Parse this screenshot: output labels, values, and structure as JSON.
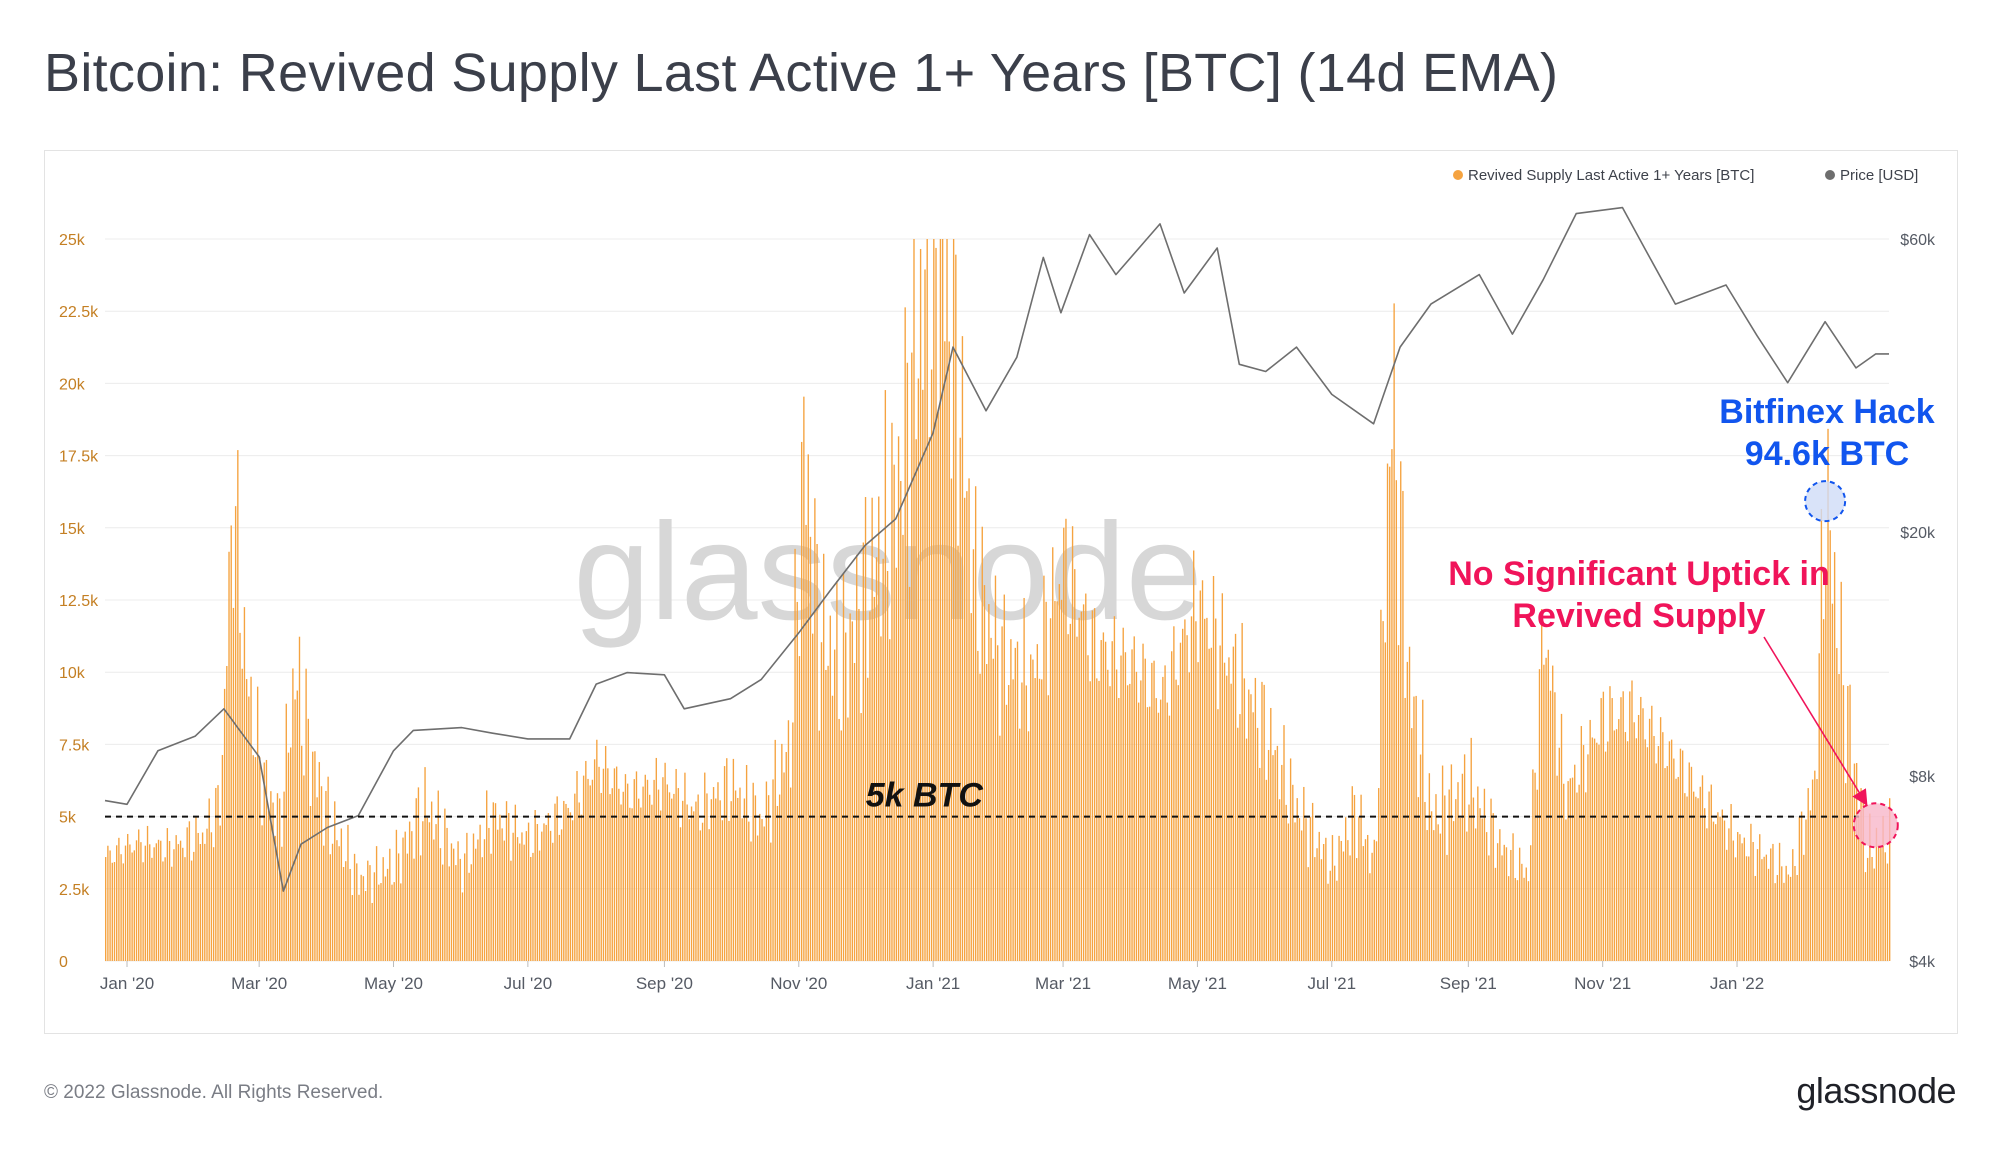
{
  "title": "Bitcoin: Revived Supply Last Active 1+ Years [BTC] (14d EMA)",
  "footer": {
    "copyright": "© 2022 Glassnode. All Rights Reserved.",
    "logo": "glassnode"
  },
  "watermark": "glassnode",
  "colors": {
    "bars": "#f5a340",
    "price": "#6e6e6e",
    "left_axis": "#c47f23",
    "right_axis": "#555a64",
    "hack_annotation": "#1155ee",
    "uptick_annotation": "#f0145a"
  },
  "legend": [
    {
      "label": "Revived Supply Last Active 1+ Years [BTC]",
      "color": "#f5a340"
    },
    {
      "label": "Price [USD]",
      "color": "#6e6e6e"
    }
  ],
  "annotations": {
    "hack_line1": "Bitfinex Hack",
    "hack_line2": "94.6k BTC",
    "uptick_line1": "No Significant Uptick in",
    "uptick_line2": "Revived Supply",
    "threshold": "5k BTC"
  },
  "chart_data": {
    "type": "bar",
    "x_range": [
      "2019-12-22",
      "2022-03-11"
    ],
    "x_tick_labels": [
      "Jan '20",
      "Mar '20",
      "May '20",
      "Jul '20",
      "Sep '20",
      "Nov '20",
      "Jan '21",
      "Mar '21",
      "May '21",
      "Jul '21",
      "Sep '21",
      "Nov '21",
      "Jan '22"
    ],
    "left_axis": {
      "label": "",
      "ylim": [
        0,
        25000
      ],
      "tick_labels": [
        "0",
        "2.5k",
        "5k",
        "7.5k",
        "10k",
        "12.5k",
        "15k",
        "17.5k",
        "20k",
        "22.5k",
        "25k"
      ]
    },
    "right_axis": {
      "label": "",
      "scale": "log",
      "ylim": [
        4000,
        60000
      ],
      "tick_labels": [
        "$4k",
        "$8k",
        "$20k",
        "$60k"
      ]
    },
    "threshold": 5000,
    "series": [
      {
        "name": "Revived Supply Last Active 1+ Years [BTC]",
        "kind": "bar",
        "points": [
          [
            "2019-12-22",
            3600
          ],
          [
            "2020-01-05",
            4100
          ],
          [
            "2020-01-20",
            3900
          ],
          [
            "2020-02-05",
            4400
          ],
          [
            "2020-02-12",
            5500
          ],
          [
            "2020-02-18",
            16200
          ],
          [
            "2020-02-24",
            9800
          ],
          [
            "2020-03-02",
            6500
          ],
          [
            "2020-03-10",
            4800
          ],
          [
            "2020-03-17",
            9900
          ],
          [
            "2020-03-24",
            7200
          ],
          [
            "2020-04-01",
            5000
          ],
          [
            "2020-04-15",
            2800
          ],
          [
            "2020-05-01",
            3300
          ],
          [
            "2020-05-15",
            5400
          ],
          [
            "2020-06-01",
            3300
          ],
          [
            "2020-06-15",
            5000
          ],
          [
            "2020-07-01",
            4200
          ],
          [
            "2020-07-20",
            5300
          ],
          [
            "2020-08-01",
            6900
          ],
          [
            "2020-08-15",
            5800
          ],
          [
            "2020-09-01",
            6200
          ],
          [
            "2020-09-15",
            5200
          ],
          [
            "2020-10-01",
            6100
          ],
          [
            "2020-10-15",
            4900
          ],
          [
            "2020-10-28",
            7500
          ],
          [
            "2020-11-03",
            17800
          ],
          [
            "2020-11-10",
            11500
          ],
          [
            "2020-11-20",
            10200
          ],
          [
            "2020-12-01",
            12800
          ],
          [
            "2020-12-15",
            16000
          ],
          [
            "2020-12-25",
            21800
          ],
          [
            "2021-01-03",
            25000
          ],
          [
            "2021-01-10",
            21500
          ],
          [
            "2021-01-20",
            13000
          ],
          [
            "2021-02-01",
            10500
          ],
          [
            "2021-02-15",
            9800
          ],
          [
            "2021-03-01",
            13800
          ],
          [
            "2021-03-15",
            10800
          ],
          [
            "2021-04-01",
            10300
          ],
          [
            "2021-04-15",
            9200
          ],
          [
            "2021-05-01",
            12400
          ],
          [
            "2021-05-15",
            10400
          ],
          [
            "2021-06-01",
            8000
          ],
          [
            "2021-06-15",
            5300
          ],
          [
            "2021-07-01",
            3300
          ],
          [
            "2021-07-12",
            5200
          ],
          [
            "2021-07-20",
            3300
          ],
          [
            "2021-07-28",
            19700
          ],
          [
            "2021-08-05",
            9500
          ],
          [
            "2021-08-15",
            5000
          ],
          [
            "2021-09-01",
            6100
          ],
          [
            "2021-09-15",
            4000
          ],
          [
            "2021-09-28",
            3000
          ],
          [
            "2021-10-05",
            11600
          ],
          [
            "2021-10-15",
            5800
          ],
          [
            "2021-11-01",
            8400
          ],
          [
            "2021-11-15",
            8700
          ],
          [
            "2021-12-01",
            7200
          ],
          [
            "2021-12-15",
            5800
          ],
          [
            "2022-01-01",
            4200
          ],
          [
            "2022-01-15",
            3600
          ],
          [
            "2022-01-25",
            3000
          ],
          [
            "2022-02-05",
            6200
          ],
          [
            "2022-02-10",
            16200
          ],
          [
            "2022-02-18",
            9500
          ],
          [
            "2022-03-01",
            3800
          ],
          [
            "2022-03-11",
            4400
          ]
        ]
      },
      {
        "name": "Price [USD]",
        "kind": "line",
        "axis": "right",
        "points": [
          [
            "2019-12-22",
            7300
          ],
          [
            "2020-01-01",
            7200
          ],
          [
            "2020-01-15",
            8800
          ],
          [
            "2020-02-01",
            9300
          ],
          [
            "2020-02-14",
            10300
          ],
          [
            "2020-03-01",
            8600
          ],
          [
            "2020-03-12",
            5200
          ],
          [
            "2020-03-20",
            6200
          ],
          [
            "2020-04-01",
            6600
          ],
          [
            "2020-04-15",
            6900
          ],
          [
            "2020-05-01",
            8800
          ],
          [
            "2020-05-10",
            9500
          ],
          [
            "2020-06-01",
            9600
          ],
          [
            "2020-06-15",
            9400
          ],
          [
            "2020-07-01",
            9200
          ],
          [
            "2020-07-20",
            9200
          ],
          [
            "2020-08-01",
            11300
          ],
          [
            "2020-08-15",
            11800
          ],
          [
            "2020-09-01",
            11700
          ],
          [
            "2020-09-10",
            10300
          ],
          [
            "2020-10-01",
            10700
          ],
          [
            "2020-10-15",
            11500
          ],
          [
            "2020-11-01",
            13700
          ],
          [
            "2020-11-15",
            16000
          ],
          [
            "2020-12-01",
            19000
          ],
          [
            "2020-12-15",
            21000
          ],
          [
            "2021-01-01",
            29000
          ],
          [
            "2021-01-10",
            40000
          ],
          [
            "2021-01-25",
            31500
          ],
          [
            "2021-02-08",
            38500
          ],
          [
            "2021-02-20",
            56000
          ],
          [
            "2021-02-28",
            45500
          ],
          [
            "2021-03-13",
            61000
          ],
          [
            "2021-03-25",
            52500
          ],
          [
            "2021-04-14",
            63500
          ],
          [
            "2021-04-25",
            49000
          ],
          [
            "2021-05-10",
            58000
          ],
          [
            "2021-05-20",
            37500
          ],
          [
            "2021-06-01",
            36500
          ],
          [
            "2021-06-15",
            40000
          ],
          [
            "2021-07-01",
            33500
          ],
          [
            "2021-07-20",
            30000
          ],
          [
            "2021-08-01",
            40000
          ],
          [
            "2021-08-15",
            47000
          ],
          [
            "2021-09-06",
            52500
          ],
          [
            "2021-09-21",
            42000
          ],
          [
            "2021-10-05",
            51500
          ],
          [
            "2021-10-20",
            66000
          ],
          [
            "2021-11-10",
            67500
          ],
          [
            "2021-11-20",
            58000
          ],
          [
            "2021-12-04",
            47000
          ],
          [
            "2021-12-27",
            50500
          ],
          [
            "2022-01-10",
            41800
          ],
          [
            "2022-01-24",
            35000
          ],
          [
            "2022-02-10",
            44000
          ],
          [
            "2022-02-24",
            37000
          ],
          [
            "2022-03-05",
            39000
          ],
          [
            "2022-03-11",
            39000
          ]
        ]
      }
    ]
  }
}
